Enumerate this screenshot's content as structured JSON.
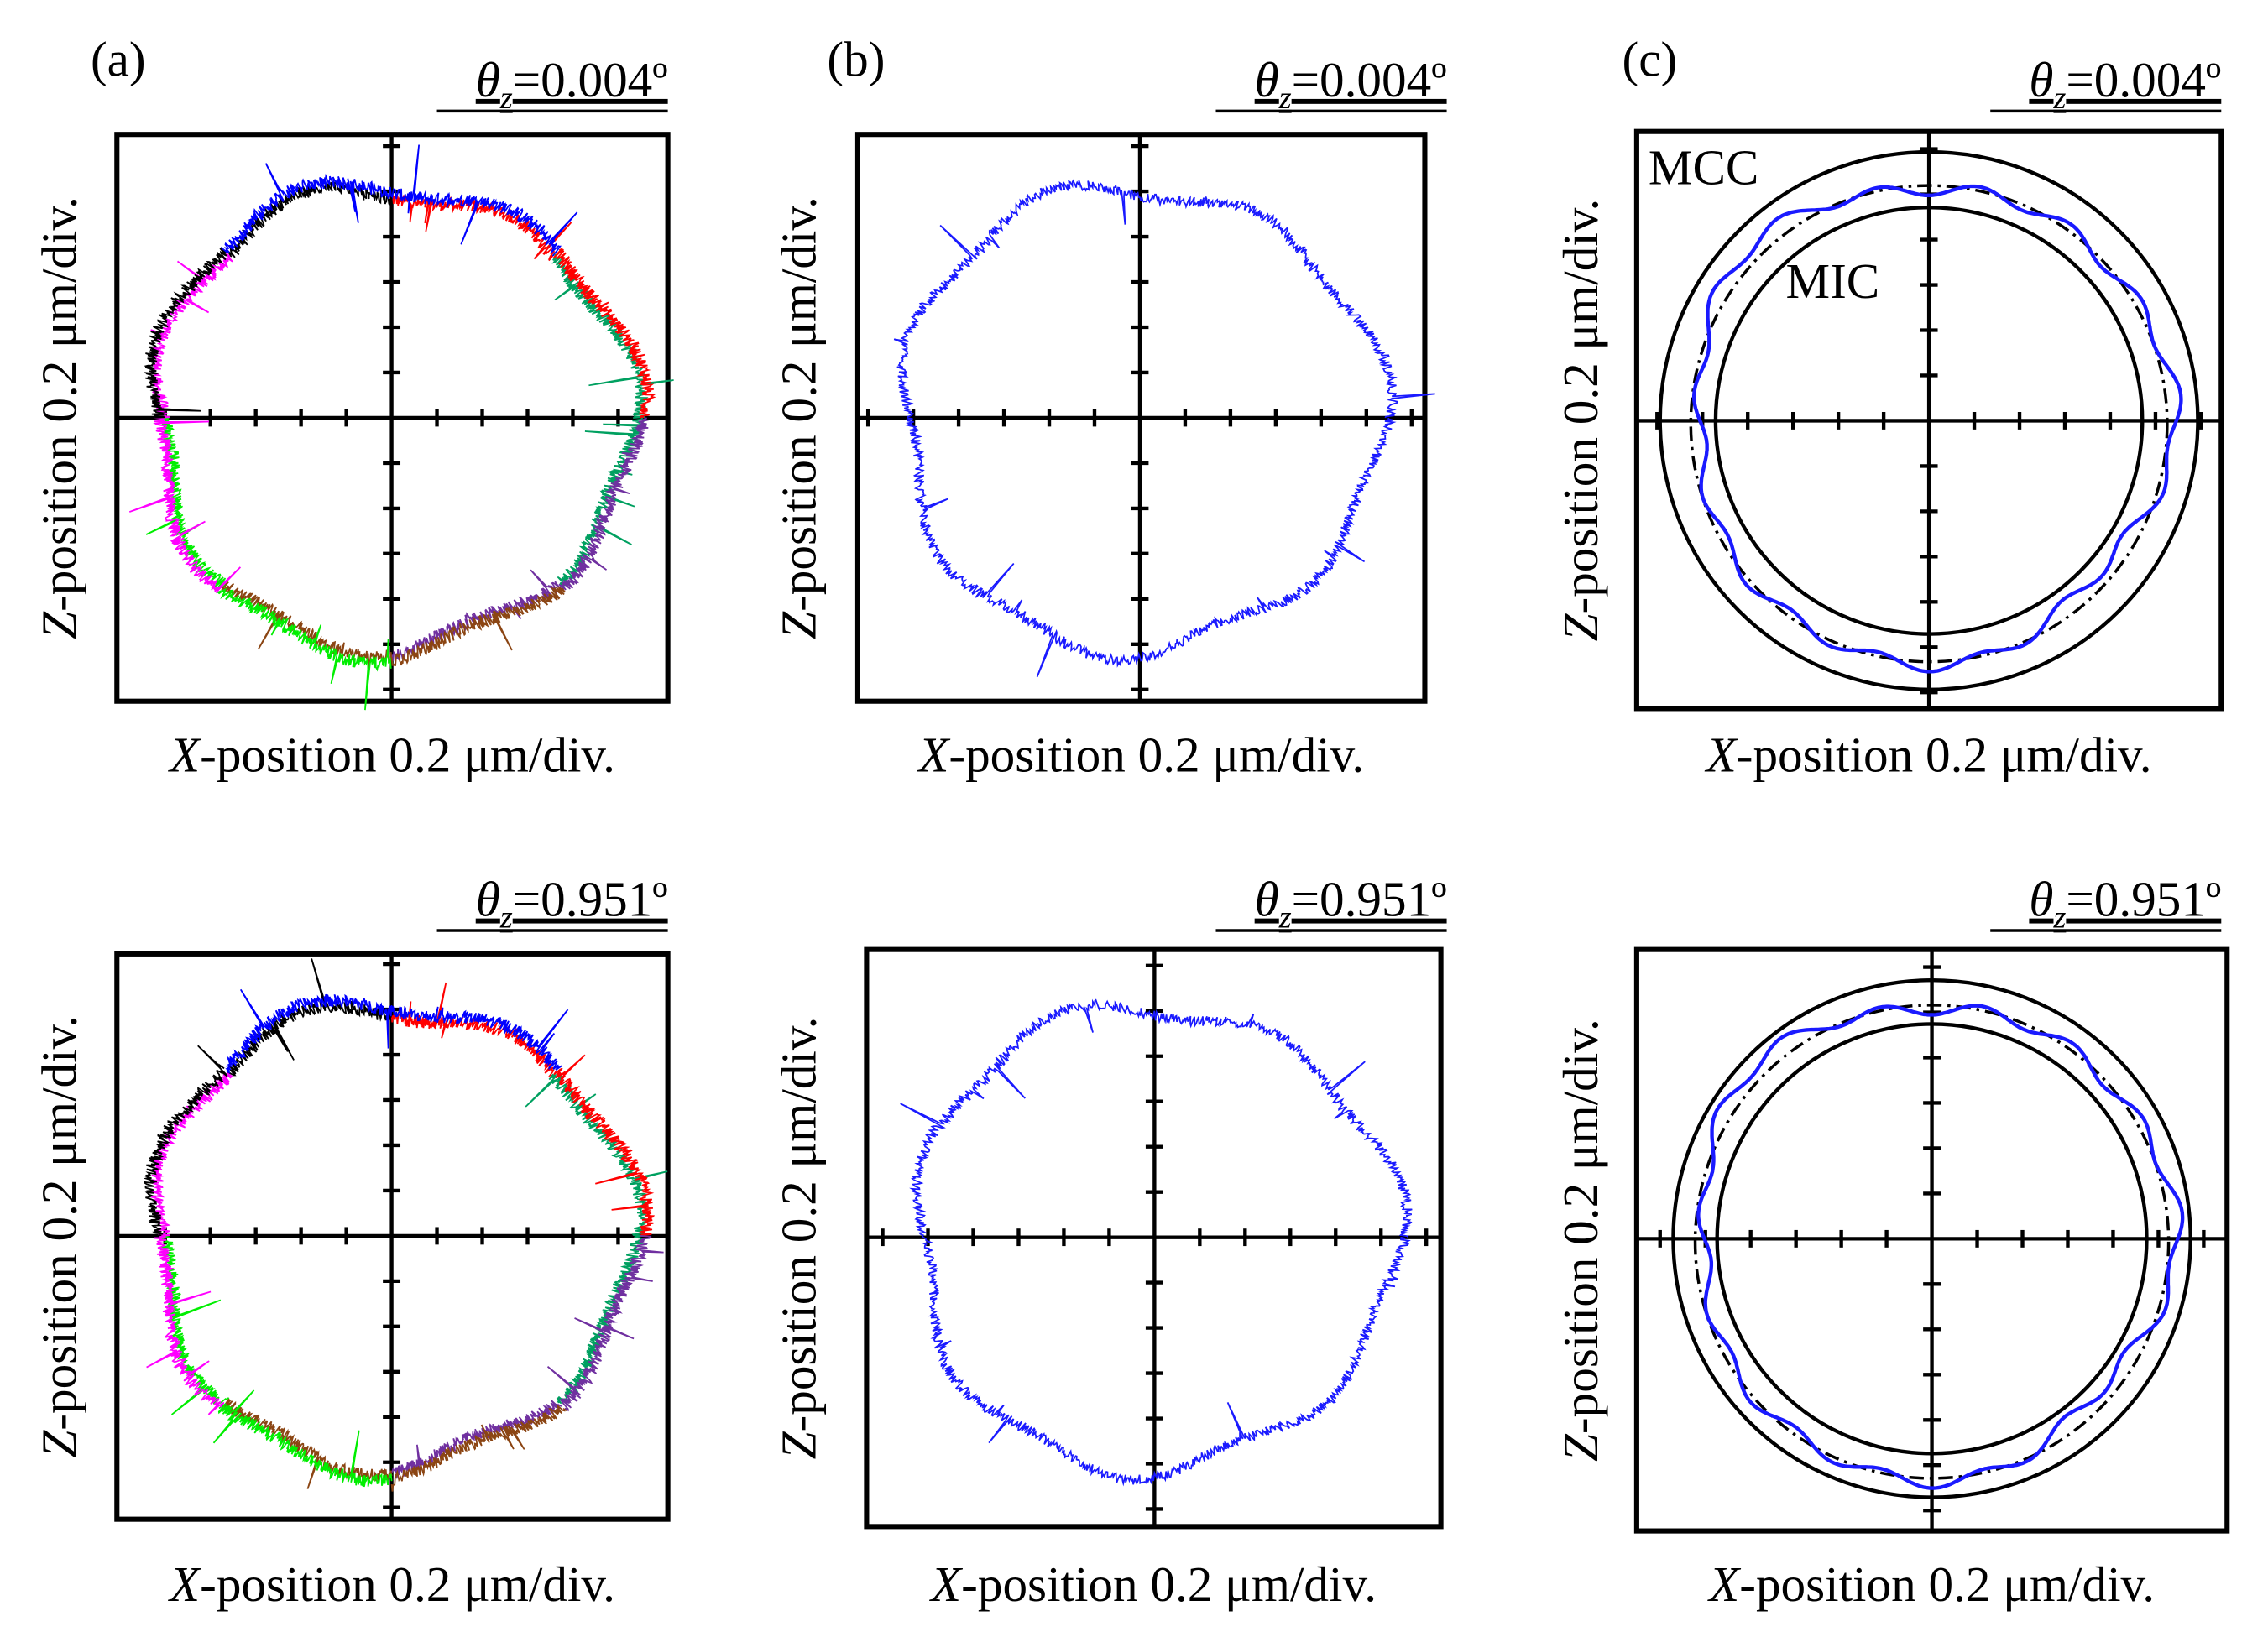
{
  "colors": {
    "frame": "#000000",
    "profile": "#1a1aff",
    "segments": [
      "#ff0000",
      "#0000ff",
      "#00a060",
      "#7030a0",
      "#8b4513",
      "#00ee00",
      "#ff00ff",
      "#000000"
    ]
  },
  "chart_data": [
    {
      "type": "line",
      "panel_label": "(a)",
      "theta_label": {
        "symbol": "θ",
        "sub": "z",
        "value": "=0.004º"
      },
      "xlabel": {
        "var": "X",
        "rest": "-position 0.2 μm/div."
      },
      "ylabel": {
        "var": "Z",
        "rest": "-position 0.2 μm/div."
      },
      "description_kind": "raw multi-segment roundness profile",
      "scale_um_per_div": 0.2,
      "mean_radius_div": 5.2,
      "lobes": 7
    },
    {
      "type": "line",
      "panel_label": "(b)",
      "theta_label": {
        "symbol": "θ",
        "sub": "z",
        "value": "=0.004º"
      },
      "xlabel": {
        "var": "X",
        "rest": "-position 0.2 μm/div."
      },
      "ylabel": {
        "var": "Z",
        "rest": "-position 0.2 μm/div."
      },
      "description_kind": "stitched roundness profile",
      "scale_um_per_div": 0.2,
      "mean_radius_div": 5.2,
      "lobes": 7
    },
    {
      "type": "line",
      "panel_label": "(c)",
      "theta_label": {
        "symbol": "θ",
        "sub": "z",
        "value": "=0.004º"
      },
      "xlabel": {
        "var": "X",
        "rest": "-position 0.2 μm/div."
      },
      "ylabel": {
        "var": "Z",
        "rest": "-position 0.2 μm/div."
      },
      "annotations": [
        "MCC",
        "MIC"
      ],
      "description_kind": "filtered profile with MCC/MIC",
      "scale_um_per_div": 0.2,
      "mcc_radius_div": 5.9,
      "mic_radius_div": 4.7,
      "lobes": 15
    },
    {
      "type": "line",
      "panel_label": "",
      "theta_label": {
        "symbol": "θ",
        "sub": "z",
        "value": "=0.951º"
      },
      "xlabel": {
        "var": "X",
        "rest": "-position 0.2 μm/div."
      },
      "ylabel": {
        "var": "Z",
        "rest": "-position 0.2 μm/div."
      },
      "description_kind": "raw multi-segment roundness profile",
      "scale_um_per_div": 0.2,
      "mean_radius_div": 5.2,
      "lobes": 7
    },
    {
      "type": "line",
      "panel_label": "",
      "theta_label": {
        "symbol": "θ",
        "sub": "z",
        "value": "=0.951º"
      },
      "xlabel": {
        "var": "X",
        "rest": "-position 0.2 μm/div."
      },
      "ylabel": {
        "var": "Z",
        "rest": "-position 0.2 μm/div."
      },
      "description_kind": "stitched roundness profile",
      "scale_um_per_div": 0.2,
      "mean_radius_div": 5.2,
      "lobes": 7
    },
    {
      "type": "line",
      "panel_label": "",
      "theta_label": {
        "symbol": "θ",
        "sub": "z",
        "value": "=0.951º"
      },
      "xlabel": {
        "var": "X",
        "rest": "-position 0.2 μm/div."
      },
      "ylabel": {
        "var": "Z",
        "rest": "-position 0.2 μm/div."
      },
      "description_kind": "filtered profile with MCC/MIC",
      "scale_um_per_div": 0.2,
      "mcc_radius_div": 5.7,
      "mic_radius_div": 4.7,
      "lobes": 15
    }
  ]
}
